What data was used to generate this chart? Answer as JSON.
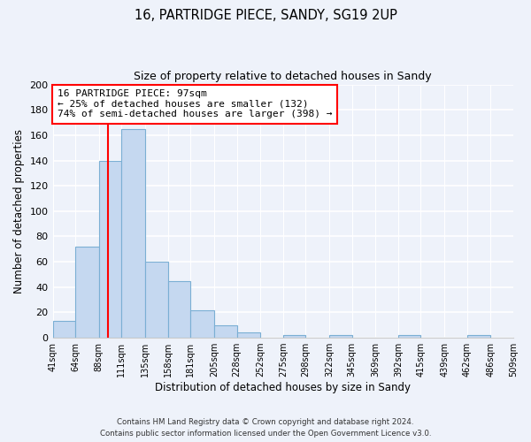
{
  "title": "16, PARTRIDGE PIECE, SANDY, SG19 2UP",
  "subtitle": "Size of property relative to detached houses in Sandy",
  "xlabel": "Distribution of detached houses by size in Sandy",
  "ylabel": "Number of detached properties",
  "bar_color": "#c5d8f0",
  "bar_edge_color": "#7bafd4",
  "vline_x": 97,
  "vline_color": "red",
  "annotation_title": "16 PARTRIDGE PIECE: 97sqm",
  "annotation_line1": "← 25% of detached houses are smaller (132)",
  "annotation_line2": "74% of semi-detached houses are larger (398) →",
  "annotation_box_color": "white",
  "annotation_box_edge": "red",
  "bins": [
    41,
    64,
    88,
    111,
    135,
    158,
    181,
    205,
    228,
    252,
    275,
    298,
    322,
    345,
    369,
    392,
    415,
    439,
    462,
    486,
    509
  ],
  "counts": [
    13,
    72,
    140,
    165,
    60,
    45,
    22,
    10,
    4,
    0,
    2,
    0,
    2,
    0,
    0,
    2,
    0,
    0,
    2,
    0
  ],
  "ylim": [
    0,
    200
  ],
  "yticks": [
    0,
    20,
    40,
    60,
    80,
    100,
    120,
    140,
    160,
    180,
    200
  ],
  "footnote1": "Contains HM Land Registry data © Crown copyright and database right 2024.",
  "footnote2": "Contains public sector information licensed under the Open Government Licence v3.0.",
  "background_color": "#eef2fa"
}
